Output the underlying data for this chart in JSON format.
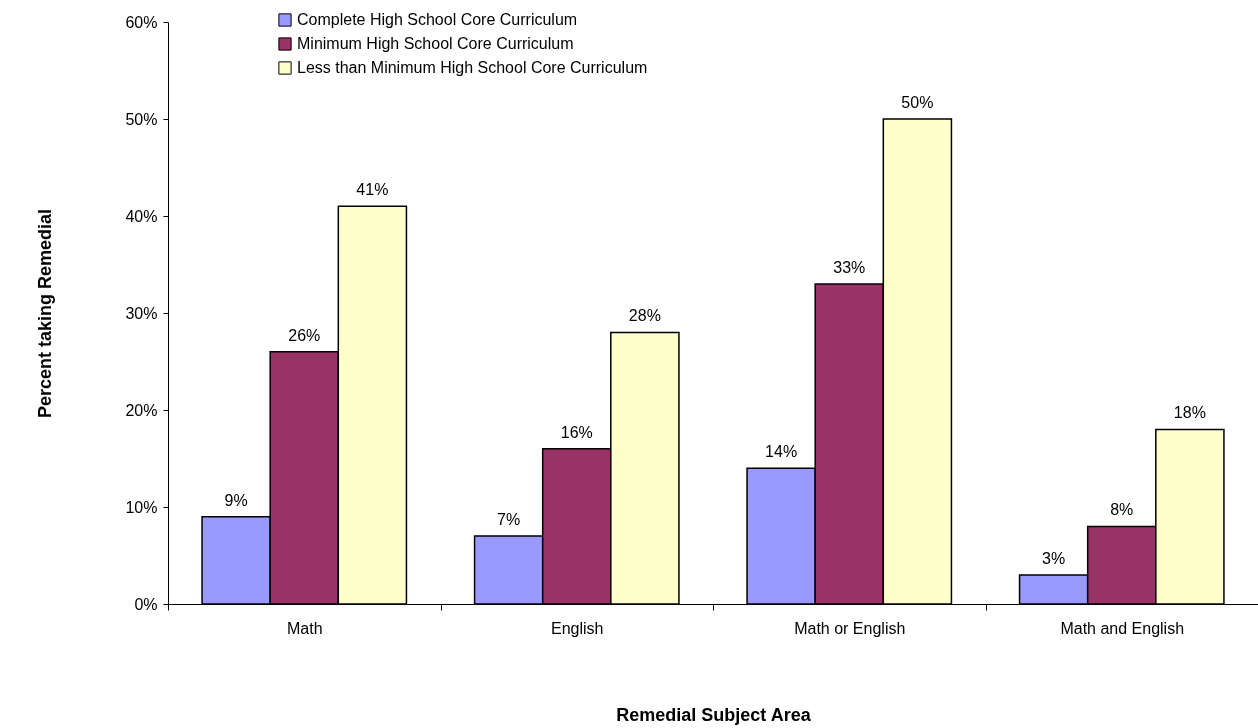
{
  "chart_data": {
    "type": "bar",
    "xlabel": "Remedial Subject Area",
    "ylabel": "Percent taking Remedial",
    "categories": [
      "Math",
      "English",
      "Math or English",
      "Math and English"
    ],
    "series": [
      {
        "name": "Complete High School Core Curriculum",
        "color": "#9999ff",
        "values": [
          9,
          7,
          14,
          3
        ],
        "value_labels": [
          "9%",
          "7%",
          "14%",
          "3%"
        ]
      },
      {
        "name": "Minimum High School Core Curriculum",
        "color": "#993366",
        "values": [
          26,
          16,
          33,
          8
        ],
        "value_labels": [
          "26%",
          "16%",
          "33%",
          "8%"
        ]
      },
      {
        "name": "Less than Minimum High School Core Curriculum",
        "color": "#ffffcc",
        "values": [
          41,
          28,
          50,
          18
        ],
        "value_labels": [
          "41%",
          "28%",
          "50%",
          "18%"
        ]
      }
    ],
    "ylim": [
      0,
      60
    ],
    "yticks": [
      {
        "value": 0,
        "label": "0%"
      },
      {
        "value": 10,
        "label": "10%"
      },
      {
        "value": 20,
        "label": "20%"
      },
      {
        "value": 30,
        "label": "30%"
      },
      {
        "value": 40,
        "label": "40%"
      },
      {
        "value": 50,
        "label": "50%"
      },
      {
        "value": 60,
        "label": "60%"
      }
    ],
    "grid": false,
    "legend": "top"
  }
}
